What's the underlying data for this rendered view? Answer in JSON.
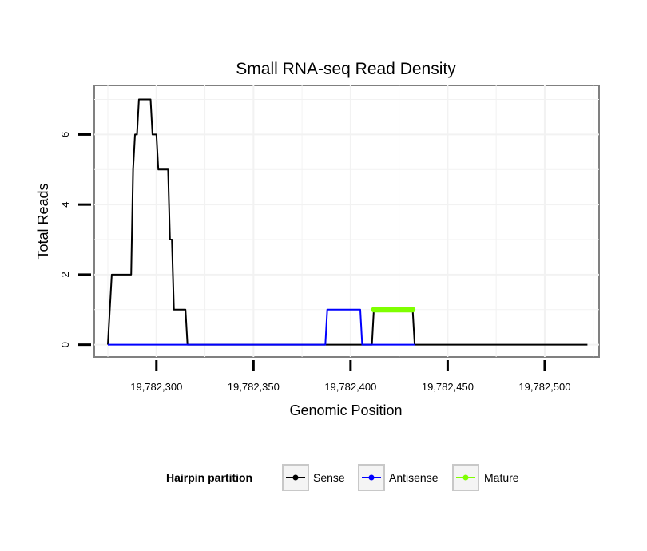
{
  "chart_data": {
    "type": "line",
    "title": "Small RNA-seq Read Density",
    "xlabel": "Genomic Position",
    "ylabel": "Total Reads",
    "xlim": [
      19782268,
      19782528
    ],
    "ylim": [
      -0.35,
      7.4
    ],
    "x_ticks": [
      19782300,
      19782350,
      19782400,
      19782450,
      19782500
    ],
    "x_tick_labels": [
      "19,782,300",
      "19,782,350",
      "19,782,400",
      "19,782,450",
      "19,782,500"
    ],
    "y_ticks": [
      0,
      2,
      4,
      6
    ],
    "y_tick_labels": [
      "0",
      "2",
      "4",
      "6"
    ],
    "grid": true,
    "legend": {
      "title": "Hairpin partition",
      "position": "bottom",
      "entries": [
        "Sense",
        "Antisense",
        "Mature"
      ]
    },
    "series": [
      {
        "name": "Sense",
        "color": "#000000",
        "points": [
          [
            19782275,
            0
          ],
          [
            19782277,
            2
          ],
          [
            19782287,
            2
          ],
          [
            19782288,
            5
          ],
          [
            19782289,
            6
          ],
          [
            19782290,
            6
          ],
          [
            19782291,
            7
          ],
          [
            19782297,
            7
          ],
          [
            19782298,
            6
          ],
          [
            19782300,
            6
          ],
          [
            19782301,
            5
          ],
          [
            19782306,
            5
          ],
          [
            19782307,
            3
          ],
          [
            19782308,
            3
          ],
          [
            19782309,
            1
          ],
          [
            19782315,
            1
          ],
          [
            19782316,
            0
          ],
          [
            19782411,
            0
          ],
          [
            19782412,
            1
          ],
          [
            19782432,
            1
          ],
          [
            19782433,
            0
          ],
          [
            19782522,
            0
          ]
        ]
      },
      {
        "name": "Antisense",
        "color": "#0000ff",
        "points": [
          [
            19782275,
            0
          ],
          [
            19782387,
            0
          ],
          [
            19782388,
            1
          ],
          [
            19782405,
            1
          ],
          [
            19782406,
            0
          ],
          [
            19782433,
            0
          ]
        ]
      },
      {
        "name": "Mature",
        "color": "#7fff00",
        "points": [
          [
            19782412,
            1
          ],
          [
            19782432,
            1
          ]
        ]
      }
    ]
  }
}
